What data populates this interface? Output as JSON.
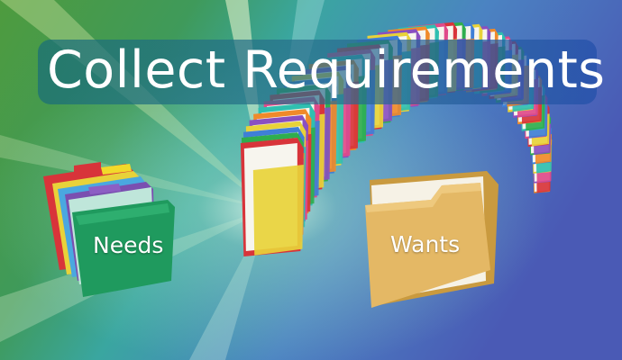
{
  "title": "Collect Requirements",
  "folders": {
    "needs_label": "Needs",
    "wants_label": "Wants"
  },
  "colors": {
    "title_text": "#ffffff",
    "needs_folder": "#1f9a5e",
    "wants_folder": "#e4b865",
    "background_green": "#3f9a4a",
    "background_blue": "#4a5fb8"
  }
}
